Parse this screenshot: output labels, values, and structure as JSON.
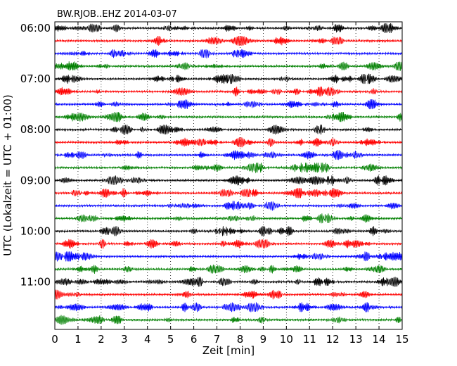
{
  "chart_data": {
    "type": "line",
    "title": "BW.RJOB..EHZ 2014-03-07",
    "xlabel": "Zeit  [min]",
    "ylabel": "UTC (Lokalzeit = UTC + 01:00)",
    "xlim": [
      0,
      15
    ],
    "x_ticks": [
      "0",
      "1",
      "2",
      "3",
      "4",
      "5",
      "6",
      "7",
      "8",
      "9",
      "10",
      "11",
      "12",
      "13",
      "14",
      "15"
    ],
    "y_tick_labels": [
      "06:00",
      "07:00",
      "08:00",
      "09:00",
      "10:00",
      "11:00"
    ],
    "trace_minutes": 15,
    "start_time": "06:00",
    "traces_per_hour": 4,
    "num_traces": 24,
    "trace_colors": [
      "#000000",
      "#ff0000",
      "#0000ff",
      "#008000"
    ],
    "vertical_grid": "dotted",
    "signal": "continuous seismic noise"
  }
}
